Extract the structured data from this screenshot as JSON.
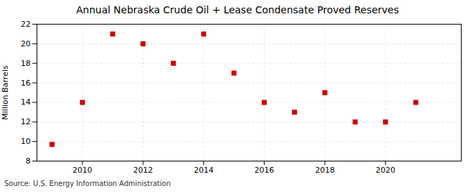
{
  "chart_data": {
    "type": "scatter",
    "title": "Annual Nebraska Crude Oil + Lease Condensate Proved Reserves",
    "ylabel": "Million Barrels",
    "source": "Source: U.S. Energy Information Administration",
    "x": [
      2009,
      2010,
      2011,
      2012,
      2013,
      2014,
      2015,
      2016,
      2017,
      2018,
      2019,
      2020,
      2021
    ],
    "values": [
      9.7,
      14.0,
      21.0,
      20.0,
      18.0,
      21.0,
      17.0,
      14.0,
      13.0,
      15.0,
      12.0,
      12.0,
      14.0
    ],
    "color": "#cc0000",
    "marker": "square",
    "xlim": [
      2008.5,
      2022.5
    ],
    "xticks": [
      2010,
      2012,
      2014,
      2016,
      2018,
      2020
    ],
    "ylim": [
      8,
      22
    ],
    "yticks": [
      8,
      10,
      12,
      14,
      16,
      18,
      20,
      22
    ],
    "grid": true
  }
}
